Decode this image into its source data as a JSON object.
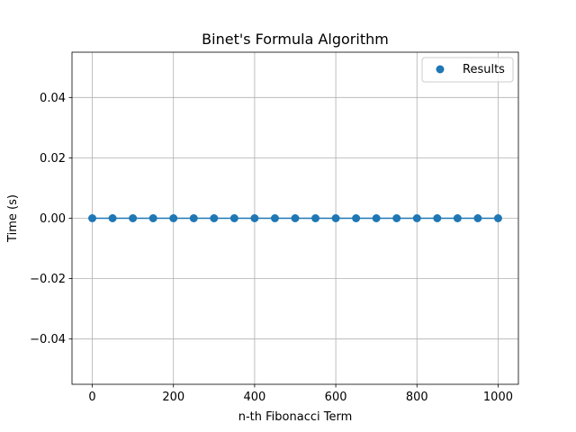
{
  "chart_data": {
    "type": "scatter",
    "title": "Binet's Formula Algorithm",
    "xlabel": "n-th Fibonacci Term",
    "ylabel": "Time (s)",
    "xlim": [
      -50,
      1050
    ],
    "ylim": [
      -0.055,
      0.055
    ],
    "xticks": [
      0,
      200,
      400,
      600,
      800,
      1000
    ],
    "xtick_labels": [
      "0",
      "200",
      "400",
      "600",
      "800",
      "1000"
    ],
    "yticks": [
      -0.04,
      -0.02,
      0.0,
      0.02,
      0.04
    ],
    "ytick_labels": [
      "−0.04",
      "−0.02",
      "0.00",
      "0.02",
      "0.04"
    ],
    "grid": true,
    "legend_position": "top-right",
    "series": [
      {
        "name": "Results",
        "color": "#1f77b4",
        "marker": "circle",
        "connected": true,
        "x": [
          0,
          50,
          100,
          150,
          200,
          250,
          300,
          350,
          400,
          450,
          500,
          550,
          600,
          650,
          700,
          750,
          800,
          850,
          900,
          950,
          1000
        ],
        "y": [
          0,
          0,
          0,
          0,
          0,
          0,
          0,
          0,
          0,
          0,
          0,
          0,
          0,
          0,
          0,
          0,
          0,
          0,
          0,
          0,
          0
        ]
      }
    ]
  }
}
